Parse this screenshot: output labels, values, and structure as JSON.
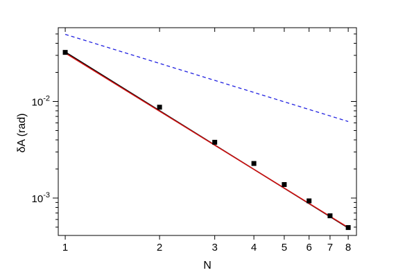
{
  "chart_data": {
    "type": "scatter",
    "xscale": "log",
    "yscale": "log",
    "xlabel": "N",
    "ylabel": "δA (rad)",
    "xlim": [
      0.95,
      8.5
    ],
    "ylim": [
      0.00041,
      0.058
    ],
    "x_ticks": [
      {
        "value": 1,
        "label": "1"
      },
      {
        "value": 2,
        "label": "2"
      },
      {
        "value": 3,
        "label": "3"
      },
      {
        "value": 4,
        "label": "4"
      },
      {
        "value": 5,
        "label": "5"
      },
      {
        "value": 6,
        "label": "6"
      },
      {
        "value": 7,
        "label": "7"
      },
      {
        "value": 8,
        "label": "8"
      }
    ],
    "y_major_ticks": [
      {
        "value": 0.01,
        "base": "10",
        "exp": "-2"
      },
      {
        "value": 0.001,
        "base": "10",
        "exp": "-3"
      }
    ],
    "grid": false,
    "legend": "none",
    "series": [
      {
        "kind": "points",
        "marker": "square",
        "color": "#000000",
        "x": [
          1,
          2,
          3,
          4,
          5,
          6,
          7,
          8
        ],
        "y": [
          0.0322,
          0.00872,
          0.00378,
          0.00228,
          0.00138,
          0.000935,
          0.000655,
          0.000495
        ]
      },
      {
        "kind": "line",
        "color": "#000000",
        "x": [
          1,
          8
        ],
        "y": [
          0.0325,
          0.00049
        ]
      },
      {
        "kind": "line",
        "color": "#d01010",
        "x": [
          1,
          8
        ],
        "y": [
          0.0317,
          0.000495
        ]
      },
      {
        "kind": "line",
        "dash": true,
        "color": "#2020e0",
        "x": [
          1,
          8
        ],
        "y": [
          0.0495,
          0.0062
        ]
      }
    ]
  }
}
